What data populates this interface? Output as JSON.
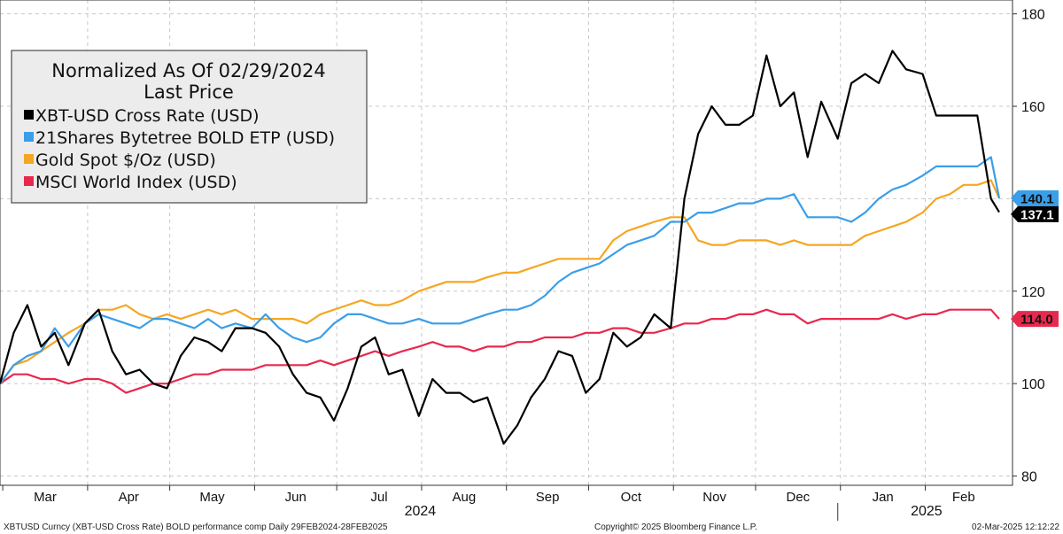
{
  "chart_data": {
    "type": "line",
    "title": "Normalized As Of 02/29/2024",
    "subtitle": "Last Price",
    "y_axis": {
      "range": [
        78,
        183
      ],
      "ticks": [
        80,
        100,
        120,
        140,
        160,
        180
      ],
      "position": "right"
    },
    "x_axis": {
      "months": [
        "Mar",
        "Apr",
        "May",
        "Jun",
        "Jul",
        "Aug",
        "Sep",
        "Oct",
        "Nov",
        "Dec",
        "Jan",
        "Feb"
      ],
      "years": [
        "2024",
        "2025"
      ]
    },
    "grid": true,
    "legend": "top-left",
    "x": [
      "2024-02-29",
      "2024-03-05",
      "2024-03-10",
      "2024-03-15",
      "2024-03-20",
      "2024-03-25",
      "2024-03-31",
      "2024-04-05",
      "2024-04-10",
      "2024-04-15",
      "2024-04-20",
      "2024-04-25",
      "2024-04-30",
      "2024-05-05",
      "2024-05-10",
      "2024-05-15",
      "2024-05-20",
      "2024-05-25",
      "2024-05-31",
      "2024-06-05",
      "2024-06-10",
      "2024-06-15",
      "2024-06-20",
      "2024-06-25",
      "2024-06-30",
      "2024-07-05",
      "2024-07-10",
      "2024-07-15",
      "2024-07-20",
      "2024-07-25",
      "2024-07-31",
      "2024-08-05",
      "2024-08-10",
      "2024-08-15",
      "2024-08-20",
      "2024-08-25",
      "2024-08-31",
      "2024-09-05",
      "2024-09-10",
      "2024-09-15",
      "2024-09-20",
      "2024-09-25",
      "2024-09-30",
      "2024-10-05",
      "2024-10-10",
      "2024-10-15",
      "2024-10-20",
      "2024-10-25",
      "2024-10-31",
      "2024-11-05",
      "2024-11-10",
      "2024-11-15",
      "2024-11-20",
      "2024-11-25",
      "2024-11-30",
      "2024-12-05",
      "2024-12-10",
      "2024-12-15",
      "2024-12-20",
      "2024-12-25",
      "2024-12-31",
      "2025-01-05",
      "2025-01-10",
      "2025-01-15",
      "2025-01-20",
      "2025-01-25",
      "2025-01-31",
      "2025-02-05",
      "2025-02-10",
      "2025-02-15",
      "2025-02-20",
      "2025-02-25",
      "2025-02-28"
    ],
    "series": [
      {
        "name": "XBT-USD Cross Rate (USD)",
        "color": "#000000",
        "last": 137.1,
        "values": [
          100,
          111,
          117,
          108,
          111,
          104,
          113,
          116,
          107,
          102,
          103,
          100,
          99,
          106,
          110,
          109,
          107,
          112,
          112,
          111,
          108,
          102,
          98,
          97,
          92,
          99,
          108,
          110,
          102,
          103,
          93,
          101,
          98,
          98,
          96,
          97,
          87,
          91,
          97,
          101,
          107,
          106,
          98,
          101,
          111,
          108,
          110,
          115,
          112,
          140,
          154,
          160,
          156,
          156,
          158,
          171,
          160,
          163,
          149,
          161,
          153,
          165,
          167,
          165,
          172,
          168,
          167,
          158,
          158,
          158,
          158,
          140,
          137.1
        ]
      },
      {
        "name": "21Shares Bytetree BOLD ETP (USD)",
        "color": "#3a9ee8",
        "last": 140.1,
        "values": [
          100,
          104,
          106,
          107,
          112,
          108,
          113,
          115,
          114,
          113,
          112,
          114,
          114,
          113,
          112,
          114,
          112,
          113,
          112,
          115,
          112,
          110,
          109,
          110,
          113,
          115,
          115,
          114,
          113,
          113,
          114,
          113,
          113,
          113,
          114,
          115,
          116,
          116,
          117,
          119,
          122,
          124,
          125,
          126,
          128,
          130,
          131,
          132,
          135,
          135,
          137,
          137,
          138,
          139,
          139,
          140,
          140,
          141,
          136,
          136,
          136,
          135,
          137,
          140,
          142,
          143,
          145,
          147,
          147,
          147,
          147,
          149,
          140.1
        ]
      },
      {
        "name": "Gold Spot $/Oz (USD)",
        "color": "#f5a623",
        "last": 140.1,
        "values": [
          100,
          104,
          105,
          107,
          109,
          111,
          113,
          116,
          116,
          117,
          115,
          114,
          115,
          114,
          115,
          116,
          115,
          116,
          114,
          114,
          114,
          114,
          113,
          115,
          116,
          117,
          118,
          117,
          117,
          118,
          120,
          121,
          122,
          122,
          122,
          123,
          124,
          124,
          125,
          126,
          127,
          127,
          127,
          127,
          131,
          133,
          134,
          135,
          136,
          136,
          131,
          130,
          130,
          131,
          131,
          131,
          130,
          131,
          130,
          130,
          130,
          130,
          132,
          133,
          134,
          135,
          137,
          140,
          141,
          143,
          143,
          144,
          140.1
        ]
      },
      {
        "name": "MSCI World Index (USD)",
        "color": "#e8294e",
        "last": 114.0,
        "values": [
          100,
          102,
          102,
          101,
          101,
          100,
          101,
          101,
          100,
          98,
          99,
          100,
          100,
          101,
          102,
          102,
          103,
          103,
          103,
          104,
          104,
          104,
          104,
          105,
          104,
          105,
          106,
          107,
          106,
          107,
          108,
          109,
          108,
          108,
          107,
          108,
          108,
          109,
          109,
          110,
          110,
          110,
          111,
          111,
          112,
          112,
          111,
          111,
          112,
          113,
          113,
          114,
          114,
          115,
          115,
          116,
          115,
          115,
          113,
          114,
          114,
          114,
          114,
          114,
          115,
          114,
          115,
          115,
          116,
          116,
          116,
          116,
          114.0
        ]
      }
    ]
  },
  "footer": {
    "left": "XBTUSD Curncy (XBT-USD Cross Rate) BOLD performance comp  Daily 29FEB2024-28FEB2025",
    "center": "Copyright© 2025 Bloomberg Finance L.P.",
    "right": "02-Mar-2025 12:12:22"
  }
}
